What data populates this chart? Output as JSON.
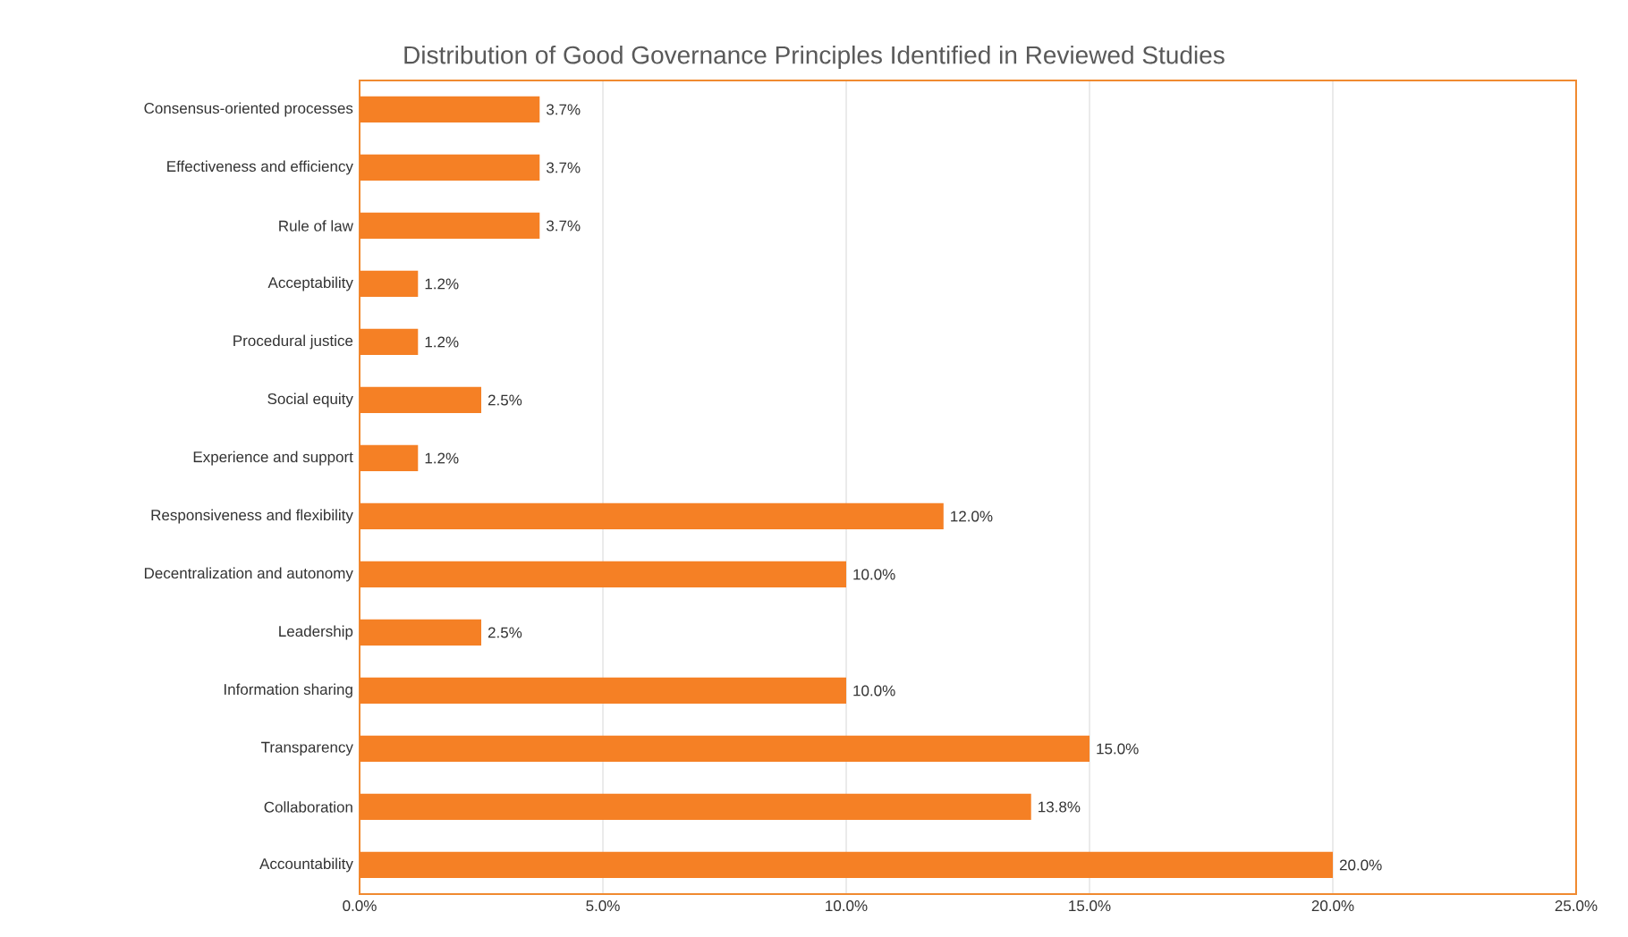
{
  "chart_data": {
    "type": "bar",
    "orientation": "horizontal",
    "title": "Distribution of Good Governance Principles Identified in Reviewed Studies",
    "categories": [
      "Consensus-oriented processes",
      "Effectiveness and efficiency",
      "Rule of law",
      "Acceptability",
      "Procedural justice",
      "Social equity",
      "Experience and support",
      "Responsiveness and flexibility",
      "Decentralization and autonomy",
      "Leadership",
      "Information sharing",
      "Transparency",
      "Collaboration",
      "Accountability"
    ],
    "values": [
      3.7,
      3.7,
      3.7,
      1.2,
      1.2,
      2.5,
      1.2,
      12.0,
      10.0,
      2.5,
      10.0,
      15.0,
      13.8,
      20.0
    ],
    "value_labels": [
      "3.7%",
      "3.7%",
      "3.7%",
      "1.2%",
      "1.2%",
      "2.5%",
      "1.2%",
      "12.0%",
      "10.0%",
      "2.5%",
      "10.0%",
      "15.0%",
      "13.8%",
      "20.0%"
    ],
    "color": "#f58025",
    "xlim": [
      0,
      25
    ],
    "xticks": [
      {
        "value": 0,
        "label": "0.0%"
      },
      {
        "value": 5,
        "label": "5.0%"
      },
      {
        "value": 10,
        "label": "10.0%"
      },
      {
        "value": 15,
        "label": "15.0%"
      },
      {
        "value": 20,
        "label": "20.0%"
      },
      {
        "value": 25,
        "label": "25.0%"
      }
    ],
    "grid": "x"
  }
}
